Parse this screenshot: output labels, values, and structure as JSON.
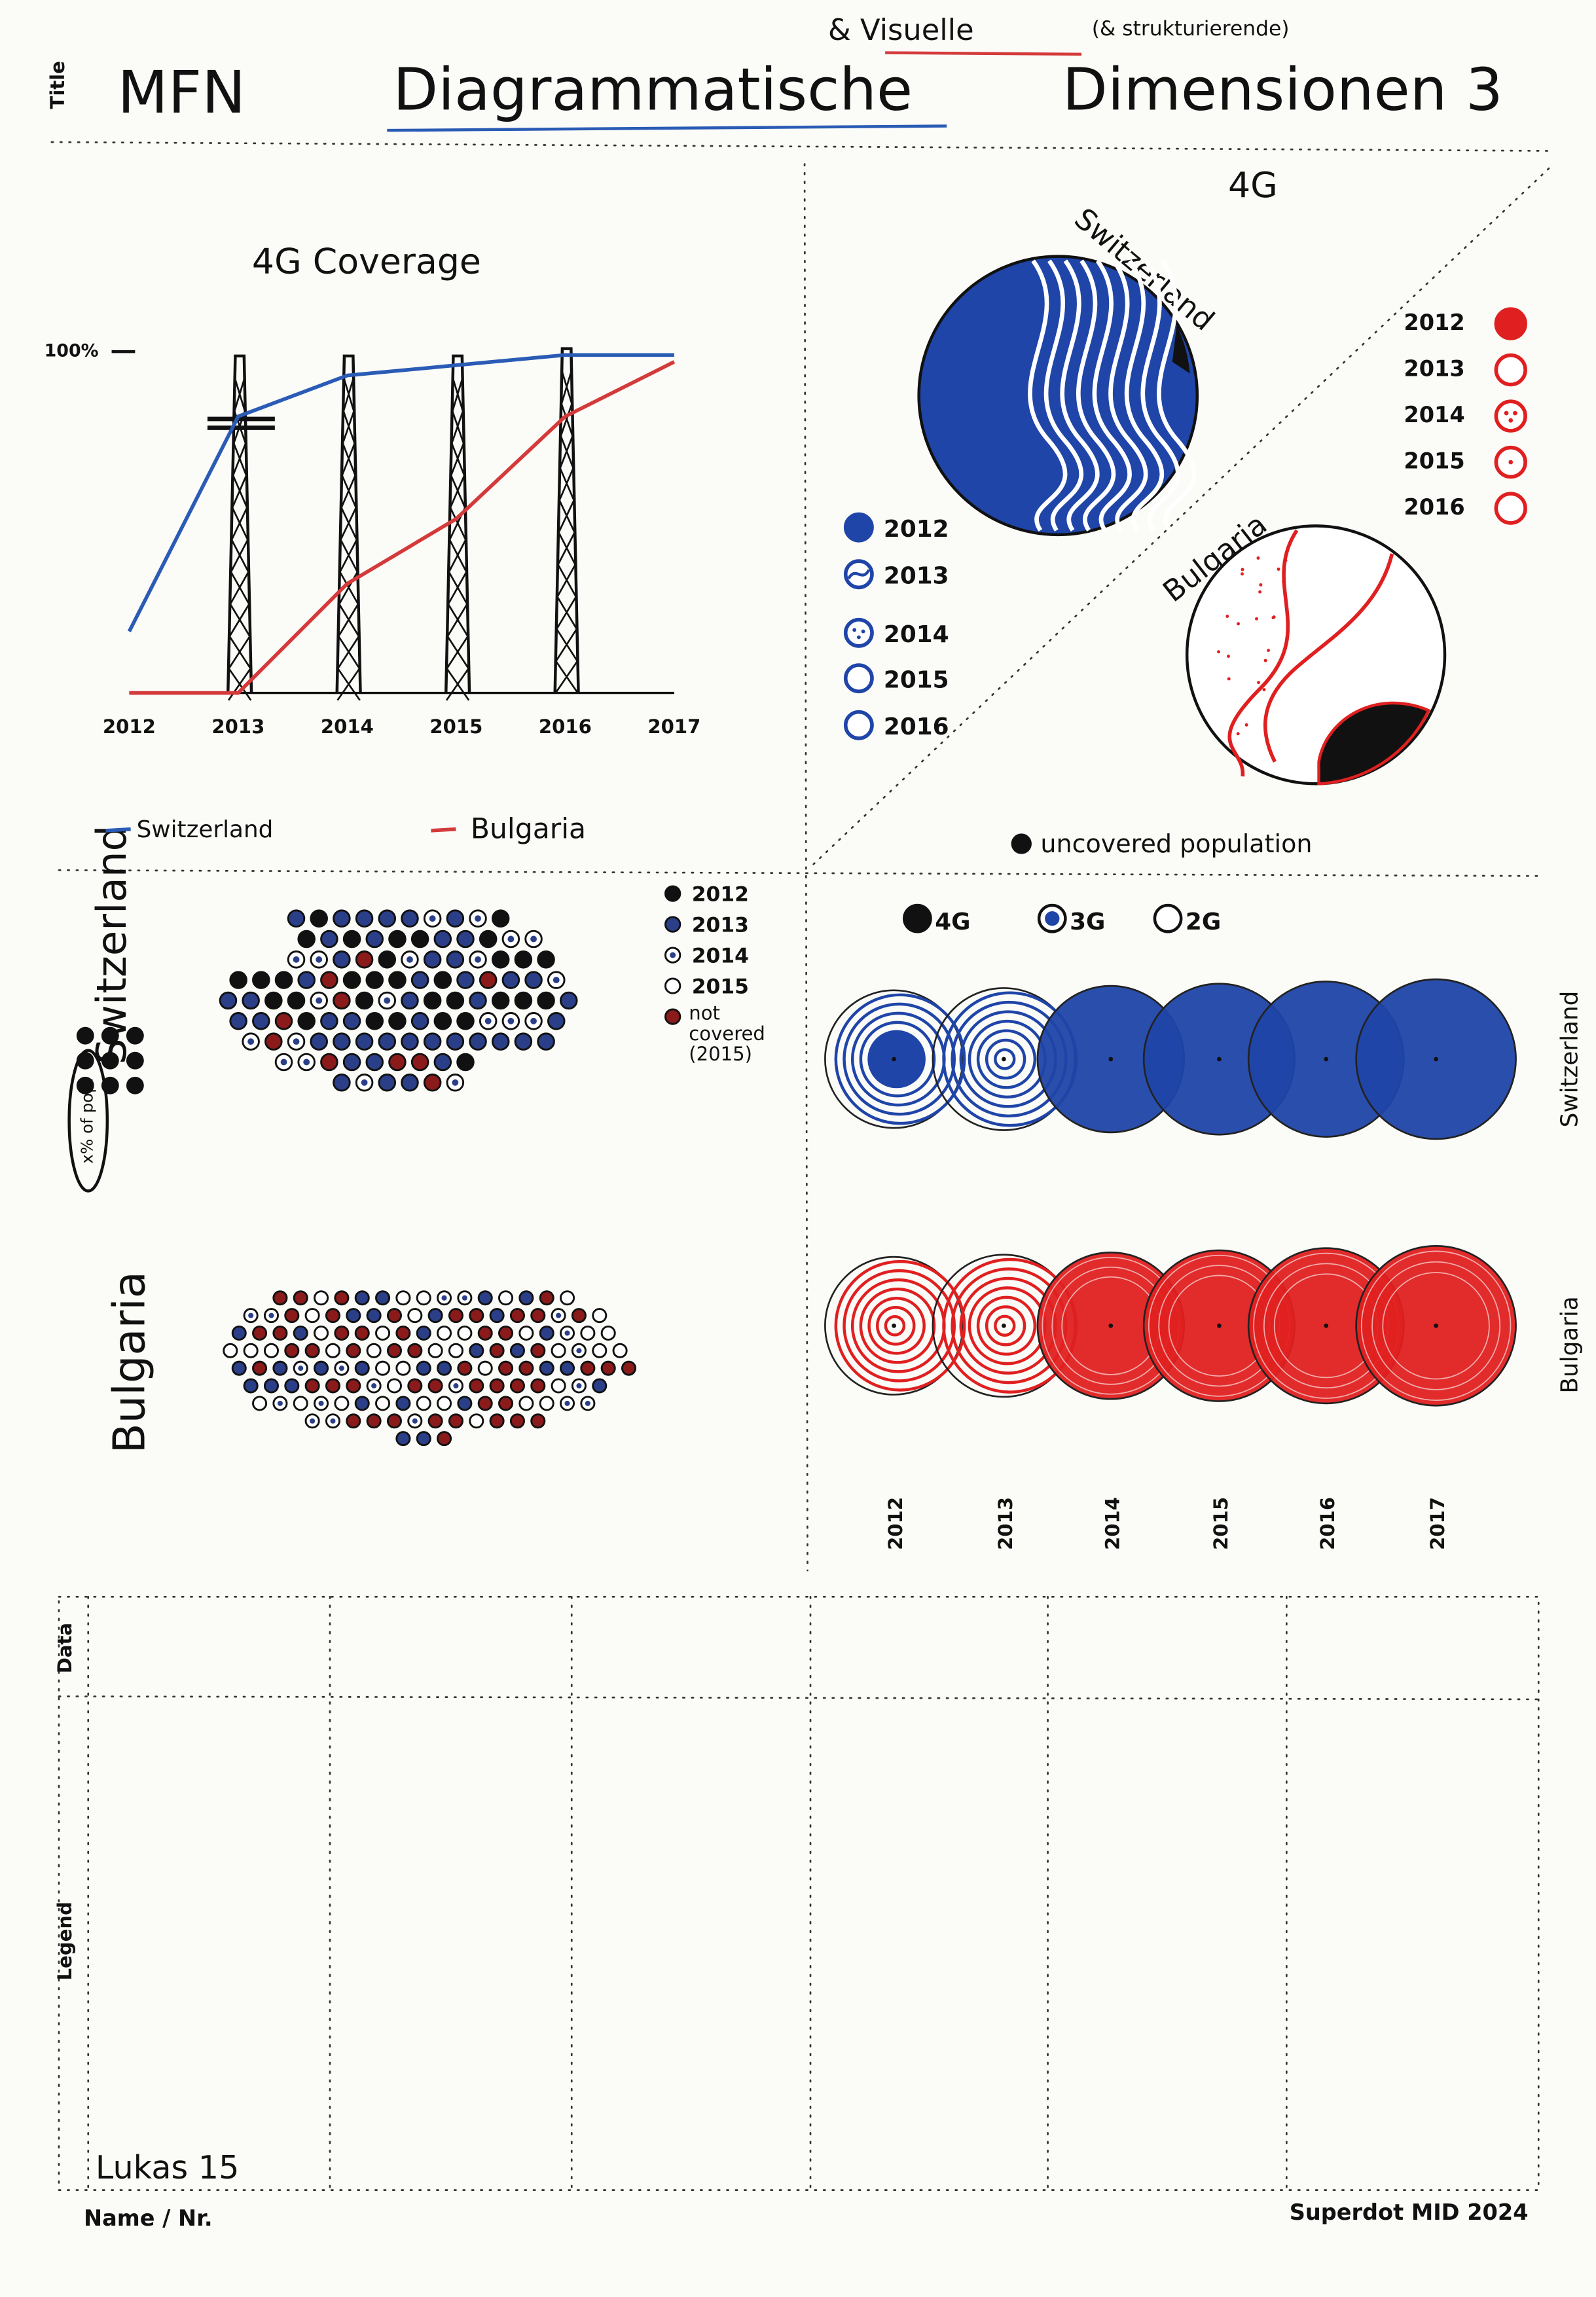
{
  "header": {
    "label": "Title",
    "mfn": "MFN",
    "title": "Diagrammatische",
    "insert": "& Visuelle",
    "insert_note": "(& strukturierende)",
    "title_end": "Dimensionen 3"
  },
  "chart_data": {
    "type": "line",
    "title": "4G Coverage",
    "categories": [
      "2012",
      "2013",
      "2014",
      "2015",
      "2016",
      "2017"
    ],
    "ylim": [
      0,
      100
    ],
    "yticks": [
      {
        "value": 100,
        "label": "100%"
      }
    ],
    "series": [
      {
        "name": "Switzerland",
        "color": "#2a5bb5",
        "values": [
          18,
          81,
          93,
          96,
          99,
          99
        ]
      },
      {
        "name": "Bulgaria",
        "color": "#d43a3a",
        "values": [
          0,
          0,
          32,
          51,
          81,
          97
        ]
      }
    ]
  },
  "globe_panel": {
    "title": "4G",
    "switzerland": "Switzerland",
    "bulgaria": "Bulgaria",
    "legend_switzerland": [
      "2012",
      "2013",
      "2014",
      "2015",
      "2016"
    ],
    "legend_bulgaria": [
      "2012",
      "2013",
      "2014",
      "2015",
      "2016"
    ],
    "uncovered": "uncovered population"
  },
  "dot_maps": {
    "switzerland": "Switzerland",
    "bulgaria": "Bulgaria",
    "share_note": "x% of pop.",
    "legend": [
      "2012",
      "2013",
      "2014",
      "2015",
      "not covered (2015)"
    ]
  },
  "circles": {
    "legend": [
      "4G",
      "3G",
      "2G"
    ],
    "switzerland": "Switzerland",
    "bulgaria": "Bulgaria",
    "years": [
      "2012",
      "2013",
      "2014",
      "2015",
      "2016",
      "2017"
    ]
  },
  "worksheet": {
    "data": "Data",
    "legend": "Legend",
    "author": "Lukas 15",
    "name_label": "Name / Nr.",
    "brand": "Superdot MID 2024"
  }
}
